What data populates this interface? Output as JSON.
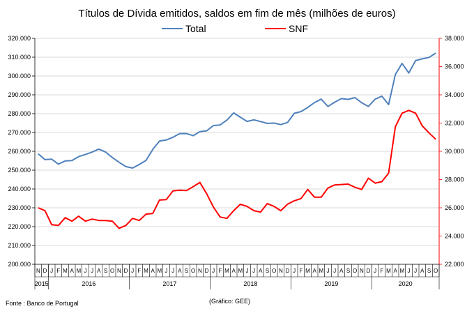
{
  "chart_data": {
    "type": "line",
    "title": "Títulos de Dívida emitidos, saldos em fim de mês  (milhões de euros)",
    "source": "Fonte : Banco de Portugal",
    "credit": "(Gráfico: GEE)",
    "legend_position": "top",
    "grid": true,
    "y_left": {
      "ylim": [
        200000,
        320000
      ],
      "ticks": [
        "200.000",
        "210.000",
        "220.000",
        "230.000",
        "240.000",
        "250.000",
        "260.000",
        "270.000",
        "280.000",
        "290.000",
        "300.000",
        "310.000",
        "320.000"
      ]
    },
    "y_right": {
      "ylim": [
        22000,
        38000
      ],
      "ticks": [
        "22.000",
        "24.000",
        "26.000",
        "28.000",
        "30.000",
        "32.000",
        "34.000",
        "36.000",
        "38.000"
      ],
      "color": "#ff0000"
    },
    "months": [
      "N",
      "D",
      "J",
      "F",
      "M",
      "A",
      "M",
      "J",
      "J",
      "A",
      "S",
      "O",
      "N",
      "D",
      "J",
      "F",
      "M",
      "A",
      "M",
      "J",
      "J",
      "A",
      "S",
      "O",
      "N",
      "D",
      "J",
      "F",
      "M",
      "A",
      "M",
      "J",
      "J",
      "A",
      "S",
      "O",
      "N",
      "D",
      "J",
      "F",
      "M",
      "A",
      "M",
      "J",
      "J",
      "A",
      "S",
      "O",
      "N",
      "D",
      "J",
      "F",
      "M",
      "A",
      "M",
      "J",
      "J",
      "A",
      "S",
      "O"
    ],
    "years": [
      {
        "label": "2015",
        "start": 0,
        "count": 2
      },
      {
        "label": "2016",
        "start": 2,
        "count": 12
      },
      {
        "label": "2017",
        "start": 14,
        "count": 12
      },
      {
        "label": "2018",
        "start": 26,
        "count": 12
      },
      {
        "label": "2019",
        "start": 38,
        "count": 12
      },
      {
        "label": "2020",
        "start": 50,
        "count": 10
      }
    ],
    "series": [
      {
        "name": "Total",
        "axis": "left",
        "color": "#4f81bd",
        "values": [
          258700,
          255600,
          255800,
          253200,
          254900,
          255100,
          257200,
          258300,
          259600,
          261200,
          259600,
          256700,
          254200,
          251900,
          251100,
          253000,
          255200,
          261000,
          265500,
          266000,
          267500,
          269400,
          269400,
          268300,
          270500,
          270900,
          273700,
          274000,
          276600,
          280400,
          278100,
          275900,
          276700,
          275800,
          274800,
          275000,
          274200,
          275300,
          280200,
          281100,
          283300,
          285900,
          287700,
          283800,
          286100,
          288000,
          287600,
          288500,
          285800,
          283800,
          287700,
          289300,
          284800,
          300800,
          306700,
          301600,
          308200,
          309100,
          309900,
          312200
        ]
      },
      {
        "name": "SNF",
        "axis": "right",
        "color": "#ff0000",
        "values": [
          26000,
          25800,
          24800,
          24750,
          25300,
          25050,
          25400,
          25050,
          25200,
          25100,
          25100,
          25050,
          24550,
          24750,
          25250,
          25100,
          25550,
          25600,
          26550,
          26580,
          27200,
          27250,
          27220,
          27500,
          27800,
          27000,
          26050,
          25350,
          25250,
          25800,
          26250,
          26100,
          25800,
          25700,
          26300,
          26100,
          25800,
          26250,
          26500,
          26650,
          27300,
          26750,
          26750,
          27400,
          27620,
          27650,
          27680,
          27450,
          27300,
          28100,
          27750,
          27850,
          28450,
          31750,
          32700,
          32900,
          32700,
          31800,
          31300,
          30850
        ]
      }
    ]
  }
}
